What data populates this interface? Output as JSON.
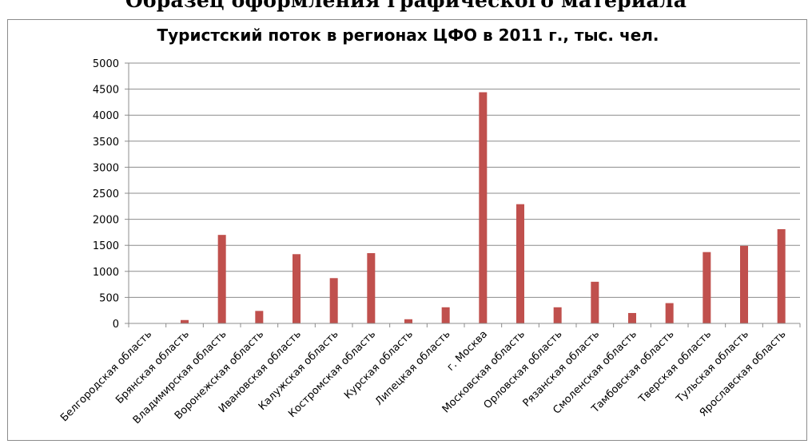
{
  "page": {
    "heading": "Образец оформления графического материала"
  },
  "chart_data": {
    "type": "bar",
    "title": "Туристский поток в регионах ЦФО в 2011 г., тыс. чел.",
    "xlabel": "",
    "ylabel": "",
    "ylim": [
      0,
      5000
    ],
    "yticks": [
      "0",
      "500",
      "1000",
      "1500",
      "2000",
      "2500",
      "3000",
      "3500",
      "4000",
      "4500",
      "5000"
    ],
    "grid": true,
    "legend": "none",
    "bar_color": "#c0504d",
    "categories": [
      "Белгородская область",
      "Брянская область",
      "Владимирская область",
      "Воронежская область",
      "Ивановская область",
      "Калужская область",
      "Костромская область",
      "Курская область",
      "Липецкая область",
      "г. Москва",
      "Московская область",
      "Орловская область",
      "Рязанская область",
      "Смоленская область",
      "Тамбовская область",
      "Тверская область",
      "Тульская область",
      "Ярославская область"
    ],
    "values": [
      0,
      65,
      1700,
      240,
      1330,
      870,
      1350,
      80,
      310,
      4440,
      2290,
      310,
      800,
      200,
      390,
      1370,
      1490,
      1810
    ]
  }
}
